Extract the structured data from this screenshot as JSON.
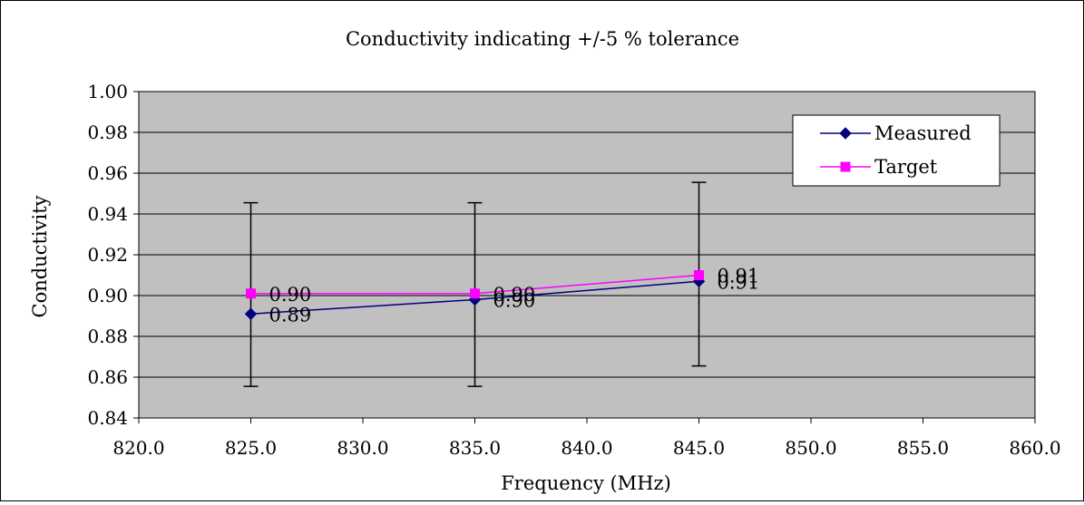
{
  "chart_data": {
    "type": "line",
    "title": "Conductivity indicating +/-5 % tolerance",
    "xlabel": "Frequency (MHz)",
    "ylabel": "Conductivity",
    "xlim": [
      820,
      860
    ],
    "ylim": [
      0.84,
      1.0
    ],
    "x_ticks": [
      "820.0",
      "825.0",
      "830.0",
      "835.0",
      "840.0",
      "845.0",
      "850.0",
      "855.0",
      "860.0"
    ],
    "y_ticks": [
      "0.84",
      "0.86",
      "0.88",
      "0.90",
      "0.92",
      "0.94",
      "0.96",
      "0.98",
      "1.00"
    ],
    "grid": "horizontal",
    "legend_position": "top-right",
    "series": [
      {
        "name": "Measured",
        "color": "#000080",
        "marker": "diamond",
        "x": [
          825,
          835,
          845
        ],
        "values": [
          0.891,
          0.898,
          0.907
        ],
        "labels": [
          "0.89",
          "0.90",
          "0.91"
        ],
        "error_low": [
          0.8555,
          0.8555,
          0.8655
        ],
        "error_high": [
          0.9455,
          0.9455,
          0.9555
        ]
      },
      {
        "name": "Target",
        "color": "#ff00ff",
        "marker": "square",
        "x": [
          825,
          835,
          845
        ],
        "values": [
          0.901,
          0.901,
          0.91
        ],
        "labels": [
          "0.90",
          "0.90",
          "0.91"
        ]
      }
    ],
    "plot_background": "#c0c0c0"
  }
}
